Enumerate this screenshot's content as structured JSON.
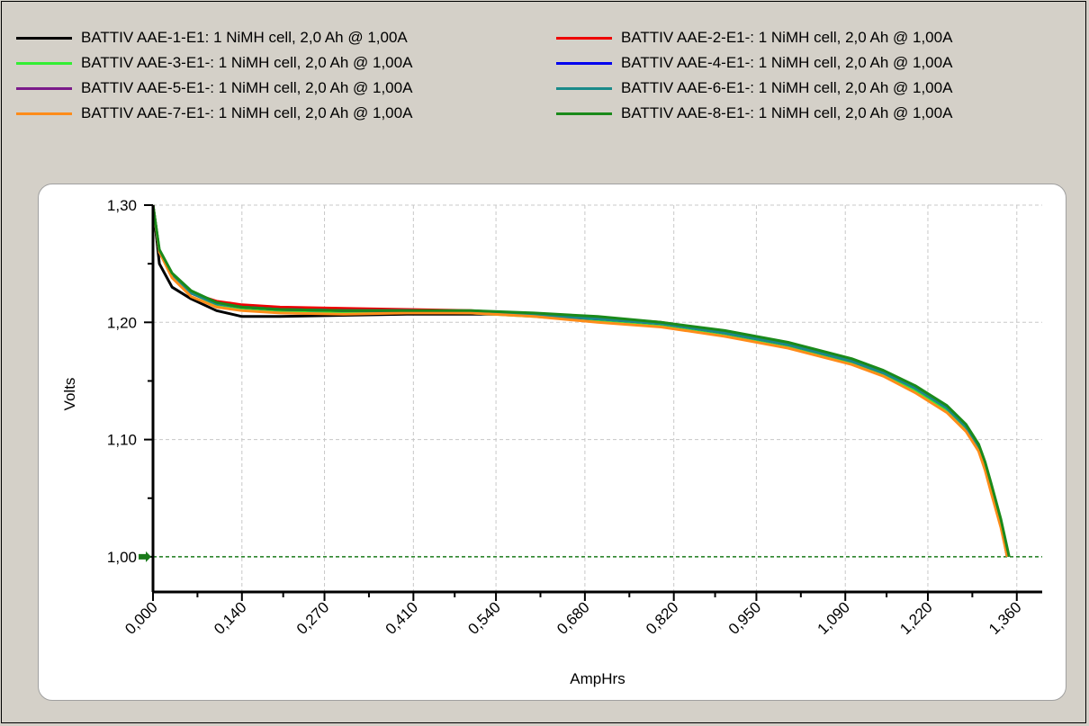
{
  "chart_data": {
    "type": "line",
    "xlabel": "AmpHrs",
    "ylabel": "Volts",
    "xlim": [
      0.0,
      1.4
    ],
    "ylim": [
      0.97,
      1.3
    ],
    "x_ticks": [
      "0,000",
      "0,140",
      "0,270",
      "0,410",
      "0,540",
      "0,680",
      "0,820",
      "0,950",
      "1,090",
      "1,220",
      "1,360"
    ],
    "y_ticks": [
      "1,00",
      "1,10",
      "1,20",
      "1,30"
    ],
    "reference_line": {
      "y": 1.0,
      "color": "#1a7a1a",
      "style": "dashed"
    },
    "grid": true,
    "legend_position": "top",
    "series": [
      {
        "name": "BATTIV AAE-1-E1: 1 NiMH cell, 2,0 Ah @ 1,00A",
        "color": "#000000",
        "x": [
          0.0,
          0.01,
          0.03,
          0.06,
          0.1,
          0.14,
          0.2,
          0.3,
          0.4,
          0.5,
          0.6,
          0.65
        ],
        "y": [
          1.3,
          1.25,
          1.23,
          1.22,
          1.21,
          1.205,
          1.205,
          1.206,
          1.207,
          1.207,
          1.207,
          1.206
        ]
      },
      {
        "name": "BATTIV AAE-2-E1-: 1 NiMH cell, 2,0 Ah @ 1,00A",
        "color": "#ee0000",
        "x": [
          0.0,
          0.01,
          0.03,
          0.06,
          0.1,
          0.14,
          0.2,
          0.3,
          0.4,
          0.5,
          0.6,
          0.7,
          0.8,
          0.9,
          1.0,
          1.1,
          1.15,
          1.2,
          1.25,
          1.28,
          1.3,
          1.31,
          1.32,
          1.335,
          1.345
        ],
        "y": [
          1.3,
          1.26,
          1.24,
          1.225,
          1.218,
          1.215,
          1.213,
          1.212,
          1.211,
          1.21,
          1.207,
          1.204,
          1.2,
          1.192,
          1.182,
          1.168,
          1.158,
          1.145,
          1.128,
          1.112,
          1.095,
          1.08,
          1.06,
          1.03,
          1.0
        ]
      },
      {
        "name": "BATTIV AAE-3-E1-: 1 NiMH cell, 2,0 Ah @ 1,00A",
        "color": "#33ee33",
        "x": [
          0.0,
          0.01,
          0.03,
          0.06,
          0.1,
          0.14,
          0.2,
          0.3,
          0.4,
          0.5,
          0.6,
          0.7,
          0.8,
          0.9,
          1.0,
          1.1,
          1.15,
          1.2,
          1.25,
          1.28,
          1.3,
          1.31,
          1.32,
          1.335,
          1.345
        ],
        "y": [
          1.3,
          1.26,
          1.24,
          1.225,
          1.215,
          1.212,
          1.21,
          1.209,
          1.209,
          1.208,
          1.205,
          1.201,
          1.197,
          1.19,
          1.18,
          1.165,
          1.155,
          1.142,
          1.125,
          1.11,
          1.093,
          1.078,
          1.058,
          1.028,
          1.0
        ]
      },
      {
        "name": "BATTIV AAE-4-E1-: 1 NiMH cell, 2,0 Ah @ 1,00A",
        "color": "#0000ee",
        "x": [
          0.0,
          0.01,
          0.03,
          0.06,
          0.1,
          0.14,
          0.2,
          0.3,
          0.4,
          0.5,
          0.6,
          0.7,
          0.8,
          0.9,
          1.0,
          1.1,
          1.15,
          1.2,
          1.25,
          1.28,
          1.3,
          1.31,
          1.32,
          1.335,
          1.345
        ],
        "y": [
          1.3,
          1.26,
          1.24,
          1.225,
          1.216,
          1.213,
          1.211,
          1.21,
          1.21,
          1.209,
          1.206,
          1.203,
          1.199,
          1.191,
          1.181,
          1.167,
          1.157,
          1.144,
          1.127,
          1.111,
          1.094,
          1.079,
          1.059,
          1.029,
          1.0
        ]
      },
      {
        "name": "BATTIV AAE-5-E1-: 1 NiMH cell, 2,0 Ah @ 1,00A",
        "color": "#7a1a8a",
        "x": [
          0.0,
          0.01,
          0.03,
          0.06,
          0.1,
          0.14,
          0.2,
          0.3,
          0.4,
          0.5,
          0.6,
          0.7,
          0.8,
          0.9,
          1.0,
          1.1,
          1.15,
          1.2,
          1.25,
          1.28,
          1.3,
          1.31,
          1.32,
          1.335,
          1.345
        ],
        "y": [
          1.3,
          1.26,
          1.24,
          1.225,
          1.216,
          1.213,
          1.211,
          1.21,
          1.21,
          1.209,
          1.206,
          1.203,
          1.199,
          1.191,
          1.181,
          1.167,
          1.157,
          1.144,
          1.127,
          1.111,
          1.094,
          1.079,
          1.059,
          1.029,
          1.0
        ]
      },
      {
        "name": "BATTIV AAE-6-E1-: 1 NiMH cell, 2,0 Ah @ 1,00A",
        "color": "#1a8a8a",
        "x": [
          0.0,
          0.01,
          0.03,
          0.06,
          0.1,
          0.14,
          0.2,
          0.3,
          0.4,
          0.5,
          0.6,
          0.7,
          0.8,
          0.9,
          1.0,
          1.1,
          1.15,
          1.2,
          1.25,
          1.28,
          1.3,
          1.31,
          1.32,
          1.335,
          1.345
        ],
        "y": [
          1.3,
          1.26,
          1.24,
          1.225,
          1.216,
          1.213,
          1.211,
          1.21,
          1.21,
          1.209,
          1.206,
          1.203,
          1.199,
          1.191,
          1.181,
          1.167,
          1.157,
          1.144,
          1.127,
          1.111,
          1.094,
          1.079,
          1.059,
          1.029,
          1.0
        ]
      },
      {
        "name": "BATTIV AAE-7-E1-: 1 NiMH cell, 2,0 Ah @ 1,00A",
        "color": "#ff8c1a",
        "x": [
          0.0,
          0.01,
          0.03,
          0.06,
          0.1,
          0.14,
          0.2,
          0.3,
          0.4,
          0.5,
          0.6,
          0.7,
          0.8,
          0.9,
          1.0,
          1.1,
          1.15,
          1.2,
          1.25,
          1.28,
          1.3,
          1.31,
          1.32,
          1.335,
          1.345
        ],
        "y": [
          1.3,
          1.26,
          1.238,
          1.222,
          1.213,
          1.21,
          1.208,
          1.207,
          1.208,
          1.208,
          1.205,
          1.2,
          1.196,
          1.188,
          1.178,
          1.164,
          1.154,
          1.14,
          1.123,
          1.107,
          1.09,
          1.074,
          1.054,
          1.025,
          1.0
        ]
      },
      {
        "name": "BATTIV AAE-8-E1-: 1 NiMH cell, 2,0 Ah @ 1,00A",
        "color": "#1a8a1a",
        "x": [
          0.0,
          0.01,
          0.03,
          0.06,
          0.1,
          0.14,
          0.2,
          0.3,
          0.4,
          0.5,
          0.6,
          0.7,
          0.8,
          0.9,
          1.0,
          1.1,
          1.15,
          1.2,
          1.25,
          1.28,
          1.3,
          1.31,
          1.32,
          1.335,
          1.348
        ],
        "y": [
          1.3,
          1.262,
          1.242,
          1.227,
          1.217,
          1.213,
          1.211,
          1.21,
          1.21,
          1.21,
          1.208,
          1.205,
          1.2,
          1.193,
          1.183,
          1.169,
          1.159,
          1.146,
          1.129,
          1.113,
          1.096,
          1.081,
          1.062,
          1.032,
          1.0
        ]
      }
    ]
  }
}
